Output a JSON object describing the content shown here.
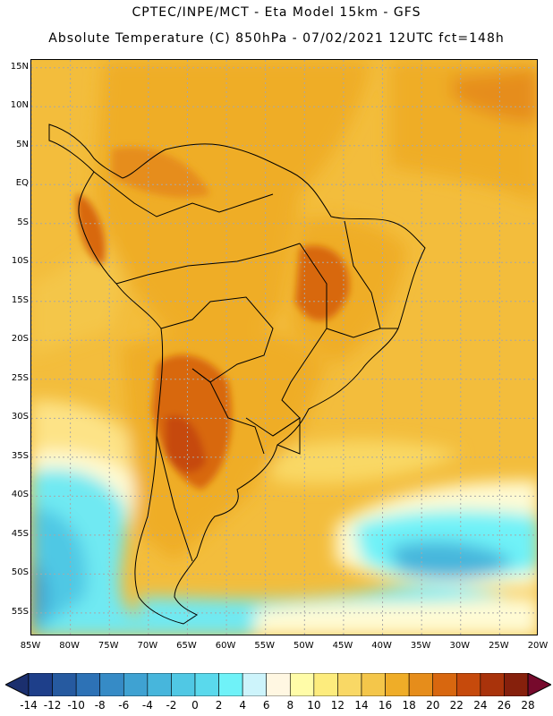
{
  "header": {
    "line1": "CPTEC/INPE/MCT -  Eta Model 15km - GFS",
    "line2": "Absolute Temperature (C) 850hPa - 07/02/2021 12UTC fct=148h"
  },
  "map": {
    "lat_labels": [
      "15N",
      "10N",
      "5N",
      "EQ",
      "5S",
      "10S",
      "15S",
      "20S",
      "25S",
      "30S",
      "35S",
      "40S",
      "45S",
      "50S",
      "55S"
    ],
    "lon_labels": [
      "85W",
      "80W",
      "75W",
      "70W",
      "65W",
      "60W",
      "55W",
      "50W",
      "45W",
      "40W",
      "35W",
      "30W",
      "25W",
      "20W"
    ],
    "lon_range": [
      -85,
      -20
    ],
    "lat_range": [
      -58,
      16
    ]
  },
  "colorbar": {
    "labels": [
      "-14",
      "-12",
      "-10",
      "-8",
      "-6",
      "-4",
      "-2",
      "0",
      "2",
      "4",
      "6",
      "8",
      "10",
      "12",
      "14",
      "16",
      "18",
      "20",
      "22",
      "24",
      "26",
      "28"
    ],
    "colors": [
      "#1e3f8a",
      "#265aa0",
      "#2d72b6",
      "#368bc6",
      "#3fa2d2",
      "#47b6dc",
      "#50c8e4",
      "#5ad9ec",
      "#6ff2f8",
      "#cdf4fb",
      "#fff7e2",
      "#fffca8",
      "#fdec7d",
      "#f9d865",
      "#f4c64a",
      "#efad28",
      "#e68d1b",
      "#d8670f",
      "#c64a0c",
      "#a9330b",
      "#86200c"
    ],
    "low_arrow_color": "#1b2f6e",
    "high_arrow_color": "#760a2c"
  }
}
